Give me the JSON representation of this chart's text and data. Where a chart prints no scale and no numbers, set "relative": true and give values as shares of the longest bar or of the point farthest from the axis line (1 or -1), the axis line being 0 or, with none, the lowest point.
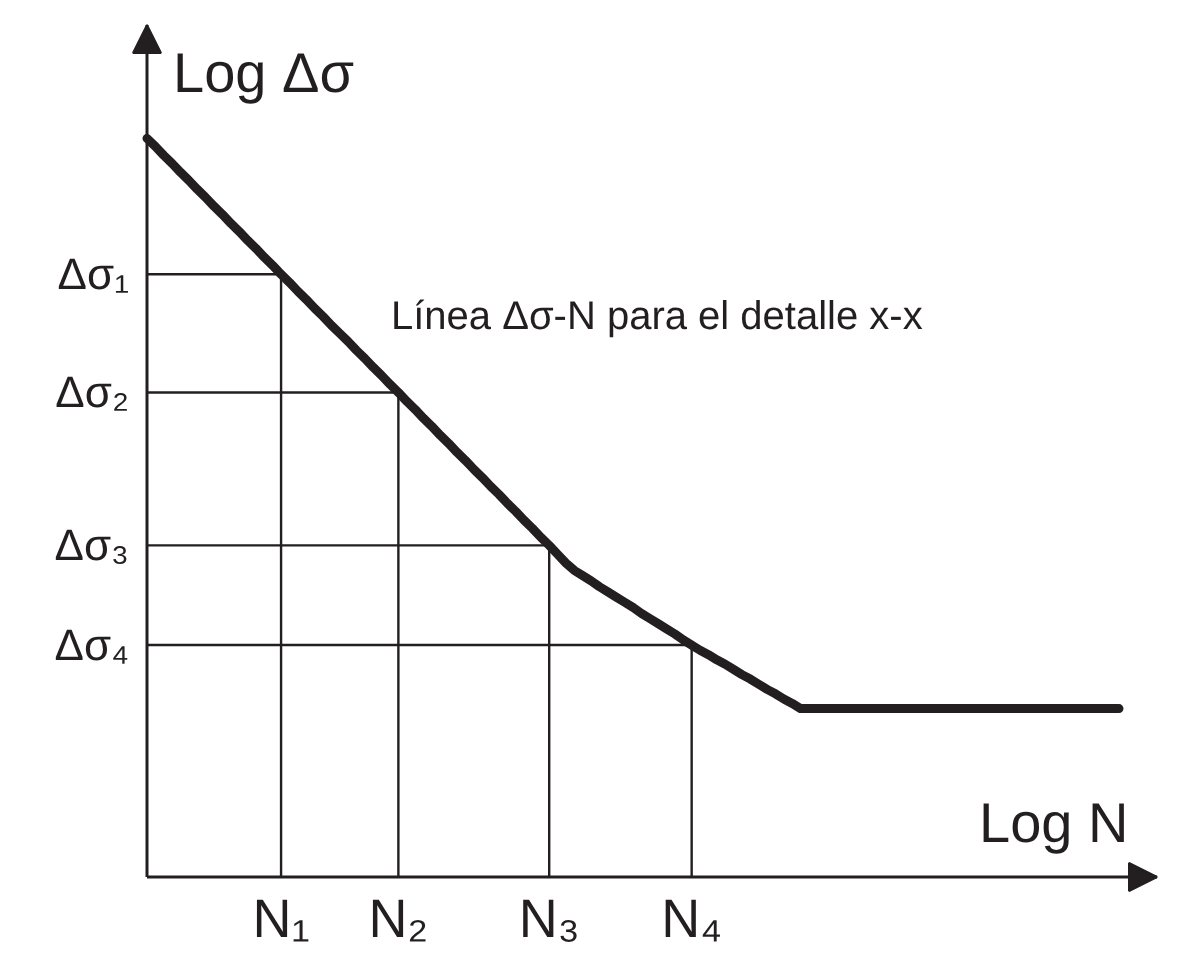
{
  "chart_data": {
    "type": "line",
    "relative": true,
    "xlabel": "Log N",
    "ylabel": "Log Δσ",
    "annotations": [
      "Línea Δσ-N para el detalle x-x"
    ],
    "categories": [
      null,
      null,
      null,
      null,
      null,
      null,
      null,
      null,
      null,
      null,
      null,
      null,
      null,
      null,
      null,
      null,
      "N₁",
      null,
      null,
      null,
      null,
      null,
      null,
      null,
      null,
      null,
      null,
      null,
      null,
      null,
      "N₂",
      null,
      null,
      null,
      null,
      null,
      null,
      null,
      null,
      null,
      null,
      null,
      null,
      null,
      null,
      null,
      null,
      null,
      "N₃",
      null,
      null,
      null,
      null,
      null,
      null,
      null,
      null,
      null,
      null,
      null,
      null,
      null,
      null,
      null,
      null,
      "N₄",
      null,
      null,
      null,
      null,
      null,
      null,
      null,
      null,
      null,
      null,
      null,
      null,
      null,
      null,
      null,
      null,
      null,
      null,
      null,
      null,
      null,
      null,
      null,
      null,
      null,
      null,
      null,
      null,
      null,
      null,
      null,
      null,
      null,
      null,
      null,
      null,
      null,
      null,
      null,
      null,
      null,
      null,
      null,
      null,
      null,
      null,
      null,
      null,
      null,
      null,
      null
    ],
    "series": [
      {
        "color": "#231f20",
        "values": [
          1.0,
          0.989,
          0.977,
          0.966,
          0.954,
          0.943,
          0.931,
          0.92,
          0.908,
          0.897,
          0.885,
          0.874,
          0.862,
          0.851,
          0.839,
          0.828,
          0.816,
          0.805,
          0.793,
          0.782,
          0.77,
          0.759,
          0.747,
          0.736,
          0.725,
          0.713,
          0.702,
          0.69,
          0.679,
          0.667,
          0.656,
          0.644,
          0.633,
          0.621,
          0.61,
          0.598,
          0.587,
          0.575,
          0.564,
          0.552,
          0.541,
          0.529,
          0.518,
          0.506,
          0.495,
          0.483,
          0.472,
          0.46,
          0.449,
          0.437,
          0.425,
          0.415,
          0.408,
          0.401,
          0.393,
          0.386,
          0.379,
          0.372,
          0.365,
          0.357,
          0.35,
          0.343,
          0.336,
          0.329,
          0.321,
          0.314,
          0.307,
          0.301,
          0.294,
          0.288,
          0.281,
          0.274,
          0.268,
          0.261,
          0.254,
          0.248,
          0.241,
          0.235,
          0.228,
          0.228,
          0.228,
          0.228,
          0.228,
          0.228,
          0.228,
          0.228,
          0.228,
          0.228,
          0.228,
          0.228,
          0.228,
          0.228,
          0.228,
          0.228,
          0.228,
          0.228,
          0.228,
          0.228,
          0.228,
          0.228,
          0.228,
          0.228,
          0.228,
          0.228,
          0.228,
          0.228,
          0.228,
          0.228,
          0.228,
          0.228,
          0.228,
          0.228,
          0.228,
          0.228,
          0.228,
          0.228,
          0.228
        ]
      }
    ],
    "ref_lines": [
      {
        "axis": "y",
        "value": 0.816,
        "label": "Δσ₁"
      },
      {
        "axis": "y",
        "value": 0.656,
        "label": "Δσ₂"
      },
      {
        "axis": "y",
        "value": 0.449,
        "label": "Δσ₃"
      },
      {
        "axis": "y",
        "value": 0.314,
        "label": "Δσ₄"
      },
      {
        "axis": "x",
        "value": "N₁"
      },
      {
        "axis": "x",
        "value": "N₂"
      },
      {
        "axis": "x",
        "value": "N₃"
      },
      {
        "axis": "x",
        "value": "N₄"
      }
    ],
    "line_style": "solid"
  }
}
